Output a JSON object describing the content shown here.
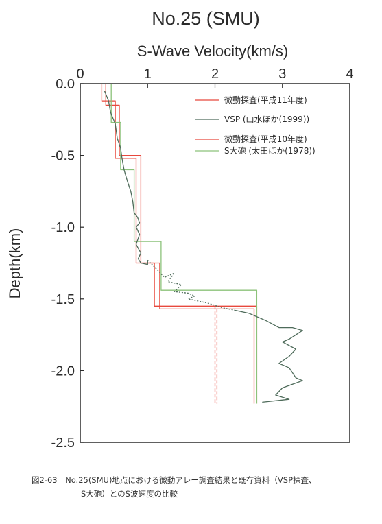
{
  "header": {
    "title": "No.25 (SMU)",
    "xlabel": "S-Wave Velocity(km/s)",
    "ylabel": "Depth(km)"
  },
  "caption": {
    "line1": "図2-63　No.25(SMU)地点における微動アレー調査結果と既存資料（VSP探査、",
    "line2": "S大砲）とのS波速度の比較"
  },
  "colors": {
    "red": "#e8483c",
    "green": "#8cc27a",
    "dark": "#4e6b5a"
  },
  "chart_data": {
    "type": "line",
    "title": "No.25 (SMU)",
    "xlabel": "S-Wave Velocity(km/s)",
    "ylabel": "Depth(km)",
    "x_axis_position": "top",
    "y_inverted": true,
    "xlim": [
      0,
      4
    ],
    "ylim": [
      0,
      2.5
    ],
    "x_ticks": [
      0,
      1,
      2,
      3,
      4
    ],
    "x_tick_labels": [
      "0",
      "1",
      "2",
      "3",
      "4"
    ],
    "y_ticks": [
      0,
      0.5,
      1.0,
      1.5,
      2.0,
      2.5
    ],
    "y_tick_labels": [
      "0.0",
      "-0.5",
      "-1.0",
      "-1.5",
      "-2.0",
      "-2.5"
    ],
    "legend_position": "top-right",
    "legend": [
      {
        "label": "微動探査(平成11年度)",
        "color": "#e8483c",
        "dash": "solid"
      },
      {
        "label": "VSP (山水ほか(1999))",
        "color": "#4e6b5a",
        "dash": "solid"
      },
      {
        "label": "微動探査(平成10年度)",
        "color": "#e8483c",
        "dash": "solid"
      },
      {
        "label": "S大砲 (太田ほか(1978))",
        "color": "#8cc27a",
        "dash": "solid"
      }
    ],
    "series": [
      {
        "name": "微動探査(平成11年度)",
        "color": "#e8483c",
        "dash": "solid",
        "points": [
          [
            0.32,
            0
          ],
          [
            0.32,
            0.12
          ],
          [
            0.52,
            0.12
          ],
          [
            0.52,
            0.52
          ],
          [
            0.83,
            0.52
          ],
          [
            0.83,
            1.25
          ],
          [
            1.1,
            1.25
          ],
          [
            1.1,
            1.55
          ],
          [
            2.62,
            1.55
          ],
          [
            2.62,
            2.23
          ]
        ]
      },
      {
        "name": "微動探査(平成10年度)",
        "color": "#e8483c",
        "dash": "solid",
        "points": [
          [
            0.38,
            0
          ],
          [
            0.38,
            0.15
          ],
          [
            0.58,
            0.15
          ],
          [
            0.58,
            0.5
          ],
          [
            0.9,
            0.5
          ],
          [
            0.9,
            1.25
          ],
          [
            1.18,
            1.25
          ],
          [
            1.18,
            1.57
          ],
          [
            2.58,
            1.57
          ],
          [
            2.58,
            2.23
          ]
        ]
      },
      {
        "name": "微動探査(平成11年度) lower bound",
        "color": "#e8483c",
        "dash": "dashed",
        "points": [
          [
            2.0,
            1.55
          ],
          [
            2.0,
            2.23
          ]
        ]
      },
      {
        "name": "微動探査(平成10年度) lower bound",
        "color": "#e8483c",
        "dash": "dashed",
        "points": [
          [
            2.03,
            1.57
          ],
          [
            2.03,
            2.23
          ]
        ]
      },
      {
        "name": "S大砲 (太田ほか(1978))",
        "color": "#8cc27a",
        "dash": "solid",
        "points": [
          [
            0.46,
            0
          ],
          [
            0.46,
            0.27
          ],
          [
            0.6,
            0.27
          ],
          [
            0.6,
            0.6
          ],
          [
            0.8,
            0.6
          ],
          [
            0.8,
            1.1
          ],
          [
            1.2,
            1.1
          ],
          [
            1.2,
            1.44
          ],
          [
            2.62,
            1.44
          ],
          [
            2.62,
            2.23
          ]
        ]
      },
      {
        "name": "VSP (山水ほか(1999))",
        "color": "#4e6b5a",
        "dash": "solid",
        "points": [
          [
            0.36,
            0.05
          ],
          [
            0.42,
            0.12
          ],
          [
            0.45,
            0.2
          ],
          [
            0.52,
            0.28
          ],
          [
            0.55,
            0.38
          ],
          [
            0.6,
            0.45
          ],
          [
            0.62,
            0.52
          ],
          [
            0.65,
            0.6
          ],
          [
            0.7,
            0.68
          ],
          [
            0.75,
            0.75
          ],
          [
            0.78,
            0.82
          ],
          [
            0.8,
            0.9
          ],
          [
            0.85,
            0.93
          ],
          [
            0.88,
            0.97
          ],
          [
            0.83,
            1.0
          ],
          [
            0.88,
            1.05
          ],
          [
            0.83,
            1.12
          ],
          [
            0.9,
            1.18
          ],
          [
            0.86,
            1.22
          ],
          [
            0.9,
            1.25
          ],
          [
            1.0,
            1.26
          ],
          [
            1.0,
            1.23
          ]
        ]
      },
      {
        "name": "VSP (山水ほか(1999)) transition",
        "color": "#4e6b5a",
        "dash": "dotted",
        "points": [
          [
            1.0,
            1.23
          ],
          [
            1.15,
            1.3
          ],
          [
            1.25,
            1.35
          ],
          [
            1.4,
            1.32
          ],
          [
            1.3,
            1.38
          ],
          [
            1.5,
            1.4
          ],
          [
            1.4,
            1.45
          ],
          [
            1.6,
            1.46
          ],
          [
            1.7,
            1.48
          ],
          [
            1.6,
            1.5
          ],
          [
            1.9,
            1.53
          ],
          [
            2.1,
            1.56
          ],
          [
            2.3,
            1.58
          ]
        ]
      },
      {
        "name": "VSP (山水ほか(1999)) deep",
        "color": "#4e6b5a",
        "dash": "solid",
        "points": [
          [
            2.3,
            1.58
          ],
          [
            2.5,
            1.6
          ],
          [
            2.75,
            1.65
          ],
          [
            2.95,
            1.7
          ],
          [
            3.15,
            1.7
          ],
          [
            3.3,
            1.72
          ],
          [
            3.1,
            1.78
          ],
          [
            3.0,
            1.8
          ],
          [
            3.2,
            1.85
          ],
          [
            3.1,
            1.9
          ],
          [
            2.95,
            1.95
          ],
          [
            3.1,
            1.98
          ],
          [
            3.2,
            2.05
          ],
          [
            3.3,
            2.07
          ],
          [
            3.0,
            2.12
          ],
          [
            2.9,
            2.17
          ],
          [
            3.1,
            2.2
          ],
          [
            2.7,
            2.22
          ]
        ]
      }
    ]
  }
}
